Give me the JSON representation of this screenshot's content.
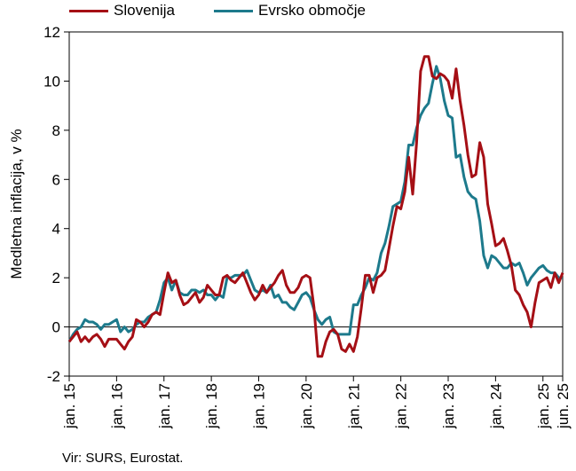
{
  "chart_data": {
    "type": "line",
    "ylabel": "Medletna inflacija, v %",
    "ylim": [
      -2,
      12
    ],
    "yticks": [
      -2,
      0,
      2,
      4,
      6,
      8,
      10,
      12
    ],
    "xticks": [
      "jan. 15",
      "jan. 16",
      "jan. 17",
      "jan. 18",
      "jan. 19",
      "jan. 20",
      "jan. 21",
      "jan. 22",
      "jan. 23",
      "jan. 24",
      "jan. 25",
      "jun. 25"
    ],
    "x_start": "2015-01",
    "x_end": "2025-06",
    "grid": false,
    "legend_position": "top",
    "series": [
      {
        "name": "Slovenija",
        "color": "#a50f15",
        "values": [
          [
            0,
            -0.6
          ],
          [
            1,
            -0.4
          ],
          [
            2,
            -0.2
          ],
          [
            3,
            -0.6
          ],
          [
            4,
            -0.4
          ],
          [
            5,
            -0.6
          ],
          [
            6,
            -0.4
          ],
          [
            7,
            -0.3
          ],
          [
            8,
            -0.5
          ],
          [
            9,
            -0.8
          ],
          [
            10,
            -0.5
          ],
          [
            11,
            -0.5
          ],
          [
            12,
            -0.5
          ],
          [
            13,
            -0.7
          ],
          [
            14,
            -0.9
          ],
          [
            15,
            -0.6
          ],
          [
            16,
            -0.4
          ],
          [
            17,
            0.3
          ],
          [
            18,
            0.2
          ],
          [
            19,
            0.0
          ],
          [
            20,
            0.2
          ],
          [
            21,
            0.5
          ],
          [
            22,
            0.6
          ],
          [
            23,
            0.5
          ],
          [
            24,
            1.4
          ],
          [
            25,
            2.2
          ],
          [
            26,
            1.8
          ],
          [
            27,
            1.9
          ],
          [
            28,
            1.3
          ],
          [
            29,
            0.9
          ],
          [
            30,
            1.0
          ],
          [
            31,
            1.2
          ],
          [
            32,
            1.4
          ],
          [
            33,
            1.0
          ],
          [
            34,
            1.2
          ],
          [
            35,
            1.7
          ],
          [
            36,
            1.5
          ],
          [
            37,
            1.3
          ],
          [
            38,
            1.3
          ],
          [
            39,
            2.0
          ],
          [
            40,
            2.1
          ],
          [
            41,
            1.9
          ],
          [
            42,
            1.8
          ],
          [
            43,
            2.0
          ],
          [
            44,
            2.2
          ],
          [
            45,
            1.8
          ],
          [
            46,
            1.4
          ],
          [
            47,
            1.1
          ],
          [
            48,
            1.3
          ],
          [
            49,
            1.7
          ],
          [
            50,
            1.4
          ],
          [
            51,
            1.6
          ],
          [
            52,
            1.8
          ],
          [
            53,
            2.1
          ],
          [
            54,
            2.3
          ],
          [
            55,
            1.7
          ],
          [
            56,
            1.4
          ],
          [
            57,
            1.4
          ],
          [
            58,
            1.6
          ],
          [
            59,
            2.0
          ],
          [
            60,
            2.1
          ],
          [
            61,
            2.0
          ],
          [
            62,
            0.8
          ],
          [
            63,
            -1.2
          ],
          [
            64,
            -1.2
          ],
          [
            65,
            -0.6
          ],
          [
            66,
            -0.2
          ],
          [
            67,
            -0.1
          ],
          [
            68,
            -0.3
          ],
          [
            69,
            -0.9
          ],
          [
            70,
            -1.0
          ],
          [
            71,
            -0.7
          ],
          [
            72,
            -1.0
          ],
          [
            73,
            -0.4
          ],
          [
            74,
            0.8
          ],
          [
            75,
            2.1
          ],
          [
            76,
            2.1
          ],
          [
            77,
            1.4
          ],
          [
            78,
            2.0
          ],
          [
            79,
            2.1
          ],
          [
            80,
            2.3
          ],
          [
            81,
            3.2
          ],
          [
            82,
            4.1
          ],
          [
            83,
            4.9
          ],
          [
            84,
            4.8
          ],
          [
            85,
            5.5
          ],
          [
            86,
            6.9
          ],
          [
            87,
            5.4
          ],
          [
            88,
            7.5
          ],
          [
            89,
            10.4
          ],
          [
            90,
            11.0
          ],
          [
            91,
            11.0
          ],
          [
            92,
            10.2
          ],
          [
            93,
            10.1
          ],
          [
            94,
            10.3
          ],
          [
            95,
            10.2
          ],
          [
            96,
            10.0
          ],
          [
            97,
            9.3
          ],
          [
            98,
            10.5
          ],
          [
            99,
            9.2
          ],
          [
            100,
            8.2
          ],
          [
            101,
            7.0
          ],
          [
            102,
            6.1
          ],
          [
            103,
            6.2
          ],
          [
            104,
            7.5
          ],
          [
            105,
            6.9
          ],
          [
            106,
            5.0
          ],
          [
            107,
            4.2
          ],
          [
            108,
            3.3
          ],
          [
            109,
            3.4
          ],
          [
            110,
            3.6
          ],
          [
            111,
            3.1
          ],
          [
            112,
            2.5
          ],
          [
            113,
            1.5
          ],
          [
            114,
            1.3
          ],
          [
            115,
            0.9
          ],
          [
            116,
            0.6
          ],
          [
            117,
            0.0
          ],
          [
            118,
            1.0
          ],
          [
            119,
            1.8
          ],
          [
            120,
            1.9
          ],
          [
            121,
            2.0
          ],
          [
            122,
            1.6
          ],
          [
            123,
            2.2
          ],
          [
            124,
            1.8
          ],
          [
            125,
            2.2
          ]
        ]
      },
      {
        "name": "Evrsko območje",
        "color": "#1d7a8c",
        "values": [
          [
            0,
            -0.6
          ],
          [
            1,
            -0.3
          ],
          [
            2,
            -0.1
          ],
          [
            3,
            0.0
          ],
          [
            4,
            0.3
          ],
          [
            5,
            0.2
          ],
          [
            6,
            0.2
          ],
          [
            7,
            0.1
          ],
          [
            8,
            -0.1
          ],
          [
            9,
            0.1
          ],
          [
            10,
            0.1
          ],
          [
            11,
            0.2
          ],
          [
            12,
            0.3
          ],
          [
            13,
            -0.2
          ],
          [
            14,
            0.0
          ],
          [
            15,
            -0.2
          ],
          [
            16,
            -0.1
          ],
          [
            17,
            0.1
          ],
          [
            18,
            0.2
          ],
          [
            19,
            0.2
          ],
          [
            20,
            0.4
          ],
          [
            21,
            0.5
          ],
          [
            22,
            0.6
          ],
          [
            23,
            1.1
          ],
          [
            24,
            1.8
          ],
          [
            25,
            2.0
          ],
          [
            26,
            1.5
          ],
          [
            27,
            1.9
          ],
          [
            28,
            1.4
          ],
          [
            29,
            1.3
          ],
          [
            30,
            1.3
          ],
          [
            31,
            1.5
          ],
          [
            32,
            1.5
          ],
          [
            33,
            1.4
          ],
          [
            34,
            1.5
          ],
          [
            35,
            1.3
          ],
          [
            36,
            1.3
          ],
          [
            37,
            1.1
          ],
          [
            38,
            1.3
          ],
          [
            39,
            1.2
          ],
          [
            40,
            2.0
          ],
          [
            41,
            2.0
          ],
          [
            42,
            2.1
          ],
          [
            43,
            2.1
          ],
          [
            44,
            2.1
          ],
          [
            45,
            2.3
          ],
          [
            46,
            1.9
          ],
          [
            47,
            1.5
          ],
          [
            48,
            1.4
          ],
          [
            49,
            1.5
          ],
          [
            50,
            1.4
          ],
          [
            51,
            1.7
          ],
          [
            52,
            1.2
          ],
          [
            53,
            1.3
          ],
          [
            54,
            1.0
          ],
          [
            55,
            1.0
          ],
          [
            56,
            0.8
          ],
          [
            57,
            0.7
          ],
          [
            58,
            1.0
          ],
          [
            59,
            1.3
          ],
          [
            60,
            1.4
          ],
          [
            61,
            1.2
          ],
          [
            62,
            0.7
          ],
          [
            63,
            0.3
          ],
          [
            64,
            0.1
          ],
          [
            65,
            0.3
          ],
          [
            66,
            0.4
          ],
          [
            67,
            -0.2
          ],
          [
            68,
            -0.3
          ],
          [
            69,
            -0.3
          ],
          [
            70,
            -0.3
          ],
          [
            71,
            -0.3
          ],
          [
            72,
            0.9
          ],
          [
            73,
            0.9
          ],
          [
            74,
            1.3
          ],
          [
            75,
            1.6
          ],
          [
            76,
            2.0
          ],
          [
            77,
            1.9
          ],
          [
            78,
            2.2
          ],
          [
            79,
            3.0
          ],
          [
            80,
            3.4
          ],
          [
            81,
            4.1
          ],
          [
            82,
            4.9
          ],
          [
            83,
            5.0
          ],
          [
            84,
            5.1
          ],
          [
            85,
            5.9
          ],
          [
            86,
            7.4
          ],
          [
            87,
            7.4
          ],
          [
            88,
            8.1
          ],
          [
            89,
            8.6
          ],
          [
            90,
            8.9
          ],
          [
            91,
            9.1
          ],
          [
            92,
            9.9
          ],
          [
            93,
            10.6
          ],
          [
            94,
            10.1
          ],
          [
            95,
            9.2
          ],
          [
            96,
            8.6
          ],
          [
            97,
            8.5
          ],
          [
            98,
            6.9
          ],
          [
            99,
            7.0
          ],
          [
            100,
            6.1
          ],
          [
            101,
            5.5
          ],
          [
            102,
            5.3
          ],
          [
            103,
            5.2
          ],
          [
            104,
            4.3
          ],
          [
            105,
            2.9
          ],
          [
            106,
            2.4
          ],
          [
            107,
            2.9
          ],
          [
            108,
            2.8
          ],
          [
            109,
            2.6
          ],
          [
            110,
            2.4
          ],
          [
            111,
            2.4
          ],
          [
            112,
            2.6
          ],
          [
            113,
            2.5
          ],
          [
            114,
            2.6
          ],
          [
            115,
            2.2
          ],
          [
            116,
            1.7
          ],
          [
            117,
            2.0
          ],
          [
            118,
            2.2
          ],
          [
            119,
            2.4
          ],
          [
            120,
            2.5
          ],
          [
            121,
            2.3
          ],
          [
            122,
            2.2
          ],
          [
            123,
            2.2
          ],
          [
            124,
            2.0
          ],
          [
            125,
            2.0
          ]
        ]
      }
    ]
  },
  "source": "Vir: SURS, Eurostat."
}
